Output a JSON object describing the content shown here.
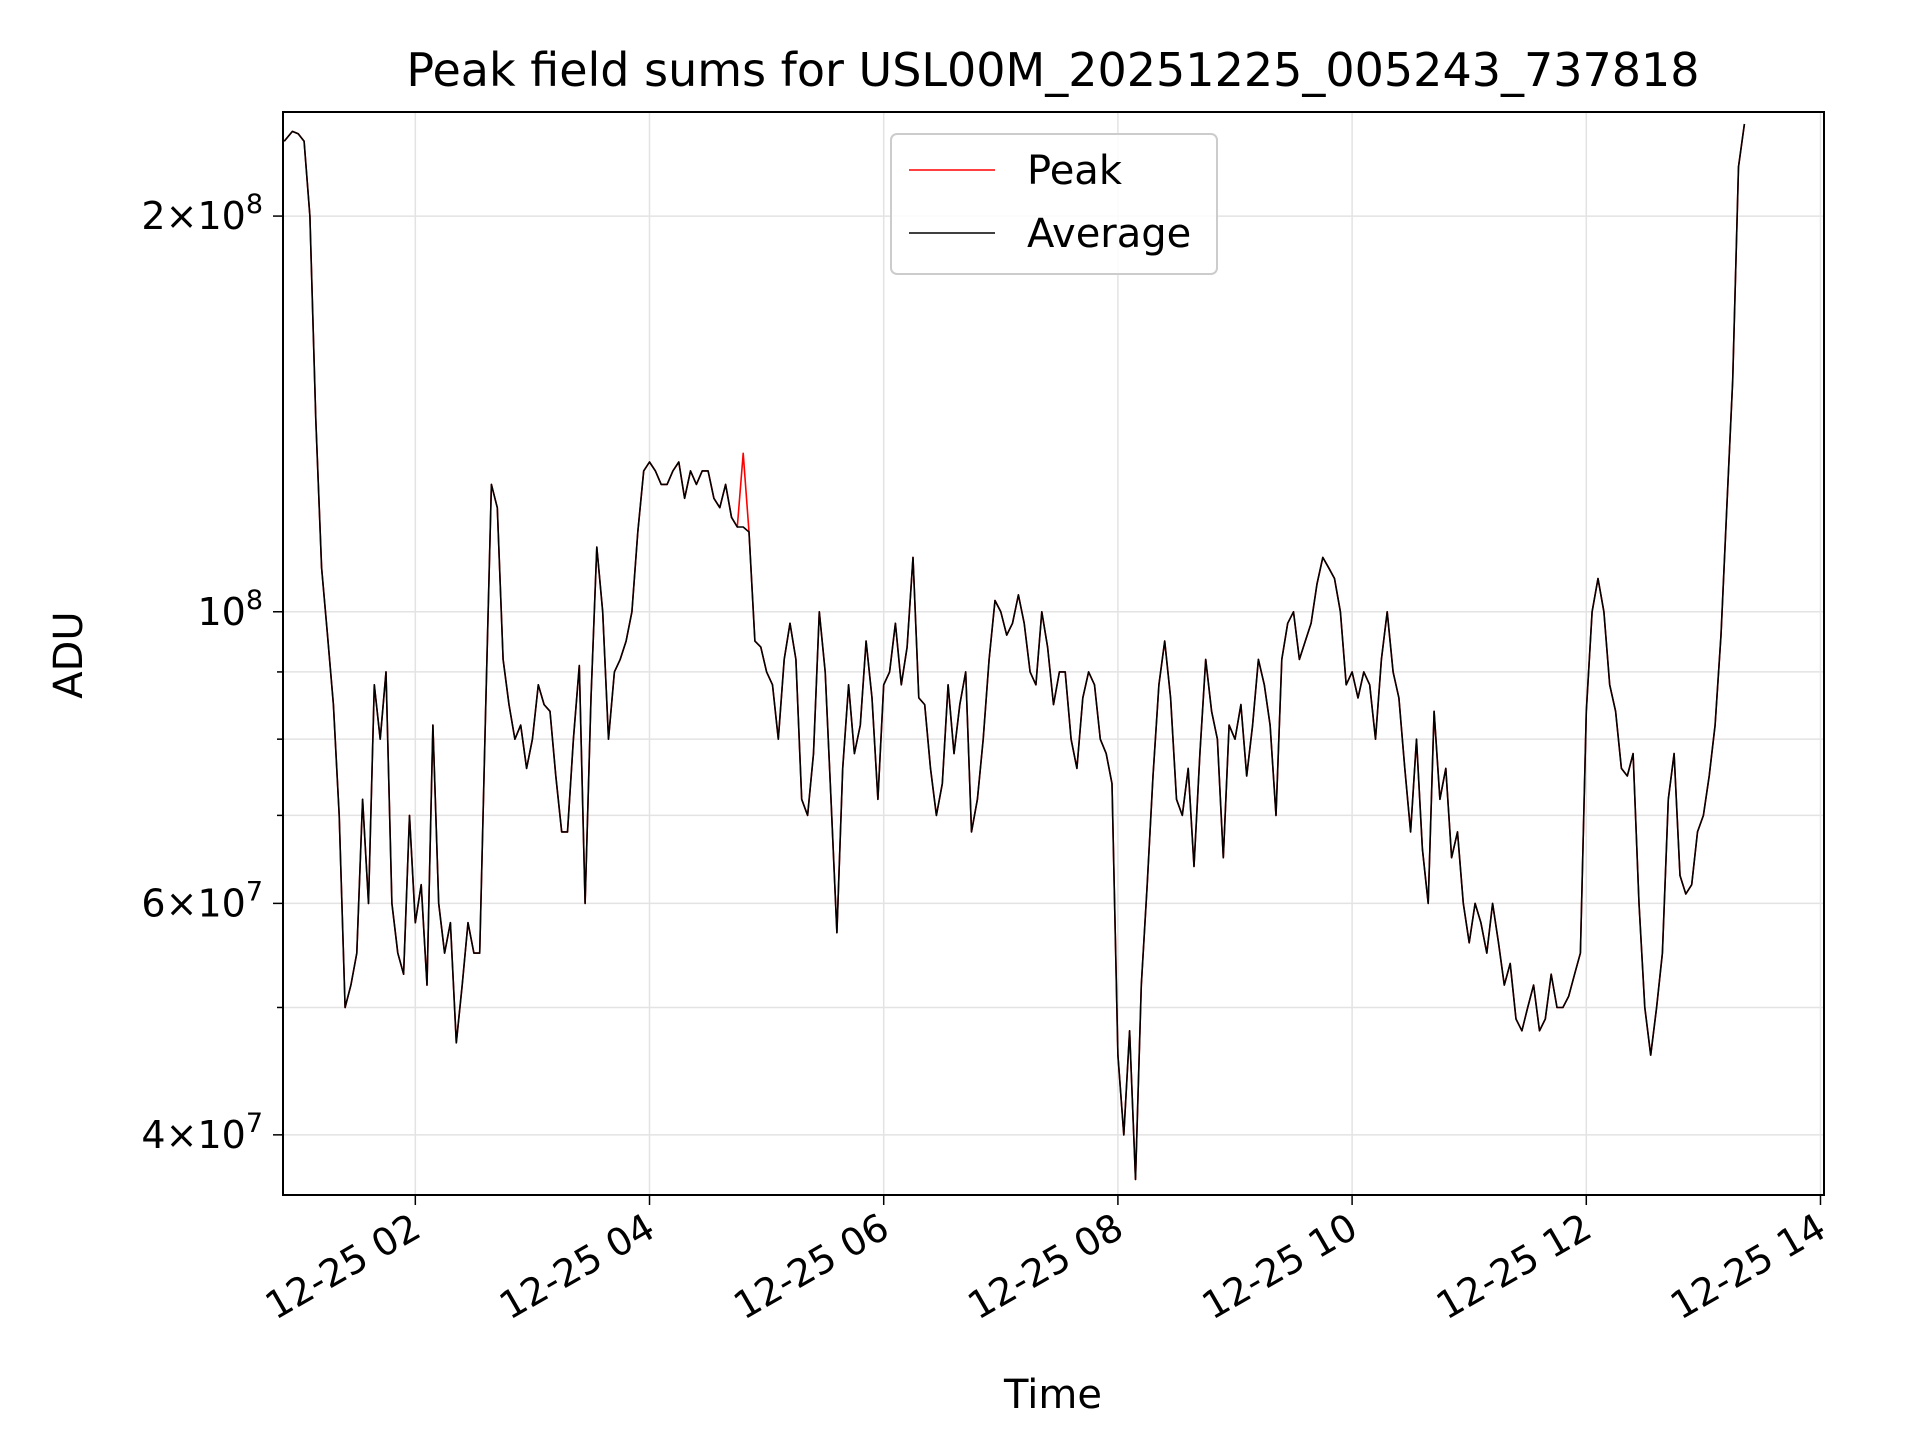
{
  "chart_data": {
    "type": "line",
    "title": "Peak field sums for USL00M_20251225_005243_737818",
    "xlabel": "Time",
    "ylabel": "ADU",
    "yscale": "log",
    "xlim": [
      0.87,
      14.03
    ],
    "ylim": [
      36000000,
      240000000
    ],
    "grid": true,
    "legend_position": "top-center",
    "x_ticks": [
      {
        "value": 2,
        "label": "12-25 02"
      },
      {
        "value": 4,
        "label": "12-25 04"
      },
      {
        "value": 6,
        "label": "12-25 06"
      },
      {
        "value": 8,
        "label": "12-25 08"
      },
      {
        "value": 10,
        "label": "12-25 10"
      },
      {
        "value": 12,
        "label": "12-25 12"
      },
      {
        "value": 14,
        "label": "12-25 14"
      }
    ],
    "y_ticks": [
      {
        "value": 40000000,
        "base": "4",
        "exp": "7"
      },
      {
        "value": 60000000,
        "base": "6",
        "exp": "7"
      },
      {
        "value": 100000000,
        "base": "",
        "exp": "8"
      },
      {
        "value": 200000000,
        "base": "2",
        "exp": "8"
      }
    ],
    "y_minor_ticks": [
      50000000,
      70000000,
      80000000,
      90000000
    ],
    "x_hours": [
      0.88,
      0.95,
      1.0,
      1.05,
      1.1,
      1.15,
      1.2,
      1.25,
      1.3,
      1.35,
      1.4,
      1.45,
      1.5,
      1.55,
      1.6,
      1.65,
      1.7,
      1.75,
      1.8,
      1.85,
      1.9,
      1.95,
      2.0,
      2.05,
      2.1,
      2.15,
      2.2,
      2.25,
      2.3,
      2.35,
      2.4,
      2.45,
      2.5,
      2.55,
      2.6,
      2.65,
      2.7,
      2.75,
      2.8,
      2.85,
      2.9,
      2.95,
      3.0,
      3.05,
      3.1,
      3.15,
      3.2,
      3.25,
      3.3,
      3.35,
      3.4,
      3.45,
      3.5,
      3.55,
      3.6,
      3.65,
      3.7,
      3.75,
      3.8,
      3.85,
      3.9,
      3.95,
      4.0,
      4.05,
      4.1,
      4.15,
      4.2,
      4.25,
      4.3,
      4.35,
      4.4,
      4.45,
      4.5,
      4.55,
      4.6,
      4.65,
      4.7,
      4.75,
      4.8,
      4.85,
      4.9,
      4.95,
      5.0,
      5.05,
      5.1,
      5.15,
      5.2,
      5.25,
      5.3,
      5.35,
      5.4,
      5.45,
      5.5,
      5.55,
      5.6,
      5.65,
      5.7,
      5.75,
      5.8,
      5.85,
      5.9,
      5.95,
      6.0,
      6.05,
      6.1,
      6.15,
      6.2,
      6.25,
      6.3,
      6.35,
      6.4,
      6.45,
      6.5,
      6.55,
      6.6,
      6.65,
      6.7,
      6.75,
      6.8,
      6.85,
      6.9,
      6.95,
      7.0,
      7.05,
      7.1,
      7.15,
      7.2,
      7.25,
      7.3,
      7.35,
      7.4,
      7.45,
      7.5,
      7.55,
      7.6,
      7.65,
      7.7,
      7.75,
      7.8,
      7.85,
      7.9,
      7.95,
      8.0,
      8.05,
      8.1,
      8.15,
      8.2,
      8.25,
      8.3,
      8.35,
      8.4,
      8.45,
      8.5,
      8.55,
      8.6,
      8.65,
      8.7,
      8.75,
      8.8,
      8.85,
      8.9,
      8.95,
      9.0,
      9.05,
      9.1,
      9.15,
      9.2,
      9.25,
      9.3,
      9.35,
      9.4,
      9.45,
      9.5,
      9.55,
      9.6,
      9.65,
      9.7,
      9.75,
      9.8,
      9.85,
      9.9,
      9.95,
      10.0,
      10.05,
      10.1,
      10.15,
      10.2,
      10.25,
      10.3,
      10.35,
      10.4,
      10.45,
      10.5,
      10.55,
      10.6,
      10.65,
      10.7,
      10.75,
      10.8,
      10.85,
      10.9,
      10.95,
      11.0,
      11.05,
      11.1,
      11.15,
      11.2,
      11.25,
      11.3,
      11.35,
      11.4,
      11.45,
      11.5,
      11.55,
      11.6,
      11.65,
      11.7,
      11.75,
      11.8,
      11.85,
      11.9,
      11.95,
      12.0,
      12.05,
      12.1,
      12.15,
      12.2,
      12.25,
      12.3,
      12.35,
      12.4,
      12.45,
      12.5,
      12.55,
      12.6,
      12.65,
      12.7,
      12.75,
      12.8,
      12.85,
      12.9,
      12.95,
      13.0,
      13.05,
      13.1,
      13.15,
      13.2,
      13.25,
      13.3,
      13.35,
      13.4,
      13.45,
      13.5,
      13.55,
      13.6,
      13.65,
      13.7,
      13.75,
      13.8,
      13.85,
      13.9,
      13.95,
      14.0
    ],
    "series": [
      {
        "name": "Peak",
        "color": "#ff0000",
        "values": [
          228,
          232,
          231,
          228,
          200,
          140,
          108,
          96,
          85,
          70,
          50,
          52,
          55,
          72,
          60,
          88,
          80,
          90,
          60,
          55,
          53,
          70,
          58,
          62,
          52,
          82,
          60,
          55,
          58,
          47,
          52,
          58,
          55,
          55,
          84,
          125,
          120,
          92,
          85,
          80,
          82,
          76,
          80,
          88,
          85,
          84,
          75,
          68,
          68,
          80,
          91,
          60,
          86,
          112,
          100,
          80,
          90,
          92,
          95,
          100,
          115,
          128,
          130,
          128,
          125,
          125,
          128,
          130,
          122,
          128,
          125,
          128,
          128,
          122,
          120,
          125,
          118,
          116,
          132,
          115,
          95,
          94,
          90,
          88,
          80,
          92,
          98,
          92,
          72,
          70,
          78,
          100,
          90,
          72,
          57,
          76,
          88,
          78,
          82,
          95,
          86,
          72,
          88,
          90,
          98,
          88,
          94,
          110,
          86,
          85,
          76,
          70,
          74,
          88,
          78,
          85,
          90,
          68,
          72,
          80,
          92,
          102,
          100,
          96,
          98,
          103,
          98,
          90,
          88,
          100,
          94,
          85,
          90,
          90,
          80,
          76,
          86,
          90,
          88,
          80,
          78,
          74,
          46,
          40,
          48,
          37,
          52,
          62,
          75,
          88,
          95,
          86,
          72,
          70,
          76,
          64,
          78,
          92,
          84,
          80,
          65,
          82,
          80,
          85,
          75,
          82,
          92,
          88,
          82,
          70,
          92,
          98,
          100,
          92,
          95,
          98,
          105,
          110,
          108,
          106,
          100,
          88,
          90,
          86,
          90,
          88,
          80,
          92,
          100,
          90,
          86,
          76,
          68,
          80,
          66,
          60,
          84,
          72,
          76,
          65,
          68,
          60,
          56,
          60,
          58,
          55,
          60,
          56,
          52,
          54,
          49,
          48,
          50,
          52,
          48,
          49,
          53,
          50,
          50,
          51,
          53,
          55,
          84,
          100,
          106,
          100,
          88,
          84,
          76,
          75,
          78,
          60,
          50,
          46,
          50,
          55,
          72,
          78,
          63,
          61,
          62,
          68,
          70,
          75,
          82,
          96,
          120,
          150,
          218,
          235
        ]
      },
      {
        "name": "Average",
        "color": "#000000",
        "values": [
          228,
          232,
          231,
          228,
          200,
          140,
          108,
          96,
          85,
          70,
          50,
          52,
          55,
          72,
          60,
          88,
          80,
          90,
          60,
          55,
          53,
          70,
          58,
          62,
          52,
          82,
          60,
          55,
          58,
          47,
          52,
          58,
          55,
          55,
          84,
          125,
          120,
          92,
          85,
          80,
          82,
          76,
          80,
          88,
          85,
          84,
          75,
          68,
          68,
          80,
          91,
          60,
          86,
          112,
          100,
          80,
          90,
          92,
          95,
          100,
          115,
          128,
          130,
          128,
          125,
          125,
          128,
          130,
          122,
          128,
          125,
          128,
          128,
          122,
          120,
          125,
          118,
          116,
          116,
          115,
          95,
          94,
          90,
          88,
          80,
          92,
          98,
          92,
          72,
          70,
          78,
          100,
          90,
          72,
          57,
          76,
          88,
          78,
          82,
          95,
          86,
          72,
          88,
          90,
          98,
          88,
          94,
          110,
          86,
          85,
          76,
          70,
          74,
          88,
          78,
          85,
          90,
          68,
          72,
          80,
          92,
          102,
          100,
          96,
          98,
          103,
          98,
          90,
          88,
          100,
          94,
          85,
          90,
          90,
          80,
          76,
          86,
          90,
          88,
          80,
          78,
          74,
          46,
          40,
          48,
          37,
          52,
          62,
          75,
          88,
          95,
          86,
          72,
          70,
          76,
          64,
          78,
          92,
          84,
          80,
          65,
          82,
          80,
          85,
          75,
          82,
          92,
          88,
          82,
          70,
          92,
          98,
          100,
          92,
          95,
          98,
          105,
          110,
          108,
          106,
          100,
          88,
          90,
          86,
          90,
          88,
          80,
          92,
          100,
          90,
          86,
          76,
          68,
          80,
          66,
          60,
          84,
          72,
          76,
          65,
          68,
          60,
          56,
          60,
          58,
          55,
          60,
          56,
          52,
          54,
          49,
          48,
          50,
          52,
          48,
          49,
          53,
          50,
          50,
          51,
          53,
          55,
          84,
          100,
          106,
          100,
          88,
          84,
          76,
          75,
          78,
          60,
          50,
          46,
          50,
          55,
          72,
          78,
          63,
          61,
          62,
          68,
          70,
          75,
          82,
          96,
          120,
          150,
          218,
          235
        ]
      }
    ],
    "value_unit_multiplier": 1000000
  }
}
